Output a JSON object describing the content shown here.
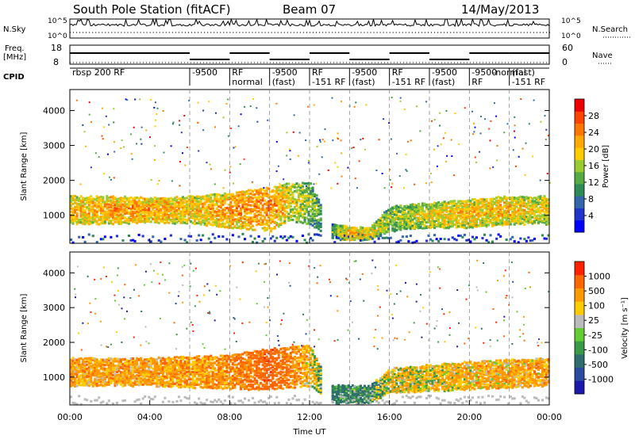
{
  "header": {
    "station": "South Pole Station (fitACF)",
    "beam": "Beam 07",
    "date": "14/May/2013"
  },
  "sky_panel": {
    "left_label": "N.Sky",
    "right_label": "N.Search",
    "left_ticks": [
      "10^5",
      "10^0"
    ],
    "right_ticks": [
      "10^5",
      "10^0"
    ]
  },
  "freq_panel": {
    "left_label_line1": "Freq.",
    "left_label_line2": "[MHz]",
    "left_ticks": [
      "18",
      "8"
    ],
    "right_label": "Nave",
    "right_ticks": [
      "60",
      "0"
    ]
  },
  "cpid": {
    "label": "CPID",
    "segments": [
      {
        "text": "rbsp 200 RF",
        "hour": 0.0
      },
      {
        "text": "-9500",
        "hour": 6.0
      },
      {
        "text": "RF",
        "hour": 8.0
      },
      {
        "text": "normal",
        "hour": 8.0
      },
      {
        "text": "-9500",
        "hour": 10.0
      },
      {
        "text": "(fast)",
        "hour": 10.0
      },
      {
        "text": "RF",
        "hour": 12.0
      },
      {
        "text": "-151 RF",
        "hour": 12.0
      },
      {
        "text": "-9500",
        "hour": 14.0
      },
      {
        "text": "(fast)",
        "hour": 14.0
      },
      {
        "text": "RF",
        "hour": 16.0
      },
      {
        "text": "-151 RF",
        "hour": 16.0
      },
      {
        "text": "-9500",
        "hour": 18.0
      },
      {
        "text": "(fast)",
        "hour": 18.0
      },
      {
        "text": "-9500",
        "hour": 20.0
      },
      {
        "text": "RF",
        "hour": 20.0
      },
      {
        "text": "-normal",
        "hour": 20.0
      },
      {
        "text": "(fast)",
        "hour": 22.0
      },
      {
        "text": "-151 RF",
        "hour": 22.0
      }
    ]
  },
  "chart_data": [
    {
      "type": "heatmap",
      "name": "power",
      "ylabel": "Slant Range [km]",
      "yticks": [
        1000,
        2000,
        3000,
        4000
      ],
      "ylim": [
        200,
        4600
      ],
      "xlim": [
        0,
        24
      ],
      "xunit": "hours UT",
      "colorbar": {
        "label": "Power [dB]",
        "ticks": [
          4,
          8,
          12,
          16,
          20,
          24,
          28
        ],
        "range": [
          0,
          32
        ],
        "colors": [
          "#0000ff",
          "#2233cc",
          "#3366aa",
          "#2e8b57",
          "#55aa44",
          "#99cc33",
          "#ffcc00",
          "#ffaa00",
          "#ff7700",
          "#ff4400",
          "#ee0000"
        ]
      },
      "band": [
        {
          "hour": 0,
          "low": 800,
          "high": 1600,
          "level": 22
        },
        {
          "hour": 2,
          "low": 800,
          "high": 1600,
          "level": 24
        },
        {
          "hour": 4,
          "low": 850,
          "high": 1550,
          "level": 24
        },
        {
          "hour": 6,
          "low": 800,
          "high": 1600,
          "level": 22
        },
        {
          "hour": 8,
          "low": 700,
          "high": 1700,
          "level": 24
        },
        {
          "hour": 10,
          "low": 600,
          "high": 1900,
          "level": 26
        },
        {
          "hour": 11,
          "low": 900,
          "high": 2000,
          "level": 20
        },
        {
          "hour": 12,
          "low": 800,
          "high": 2000,
          "level": 16
        },
        {
          "hour": 13,
          "low": 400,
          "high": 800,
          "level": 12
        },
        {
          "hour": 14,
          "low": 350,
          "high": 700,
          "level": 24
        },
        {
          "hour": 15,
          "low": 350,
          "high": 700,
          "level": 20
        },
        {
          "hour": 16,
          "low": 600,
          "high": 1300,
          "level": 16
        },
        {
          "hour": 18,
          "low": 700,
          "high": 1400,
          "level": 20
        },
        {
          "hour": 20,
          "low": 700,
          "high": 1500,
          "level": 22
        },
        {
          "hour": 22,
          "low": 800,
          "high": 1600,
          "level": 22
        },
        {
          "hour": 24,
          "low": 800,
          "high": 1600,
          "level": 20
        }
      ]
    },
    {
      "type": "heatmap",
      "name": "velocity",
      "ylabel": "Slant Range [km]",
      "yticks": [
        1000,
        2000,
        3000,
        4000
      ],
      "ylim": [
        200,
        4600
      ],
      "xlim": [
        0,
        24
      ],
      "xticks": [
        "00:00",
        "04:00",
        "08:00",
        "12:00",
        "16:00",
        "20:00",
        "00:00"
      ],
      "xlabel": "Time UT",
      "colorbar": {
        "label": "Velocity [m s⁻¹]",
        "ticks": [
          "1000",
          "500",
          "100",
          "25",
          "-25",
          "-100",
          "-500",
          "-1000"
        ],
        "colors": [
          "#1a1aaa",
          "#2a4aa0",
          "#2e6e6e",
          "#3a9a4a",
          "#66cc33",
          "#bbbbbb",
          "#ffcc00",
          "#ff9900",
          "#ff6600",
          "#ff2200"
        ]
      },
      "band": [
        {
          "hour": 0,
          "low": 800,
          "high": 1600,
          "level": -150
        },
        {
          "hour": 4,
          "low": 800,
          "high": 1600,
          "level": -150
        },
        {
          "hour": 8,
          "low": 700,
          "high": 1700,
          "level": -200
        },
        {
          "hour": 10,
          "low": 700,
          "high": 1900,
          "level": -400
        },
        {
          "hour": 12,
          "low": 800,
          "high": 2000,
          "level": -100
        },
        {
          "hour": 13,
          "low": 300,
          "high": 800,
          "level": 150
        },
        {
          "hour": 15,
          "low": 300,
          "high": 800,
          "level": 100
        },
        {
          "hour": 16,
          "low": 600,
          "high": 1300,
          "level": -50
        },
        {
          "hour": 20,
          "low": 700,
          "high": 1500,
          "level": -120
        },
        {
          "hour": 24,
          "low": 800,
          "high": 1600,
          "level": -150
        }
      ]
    }
  ]
}
